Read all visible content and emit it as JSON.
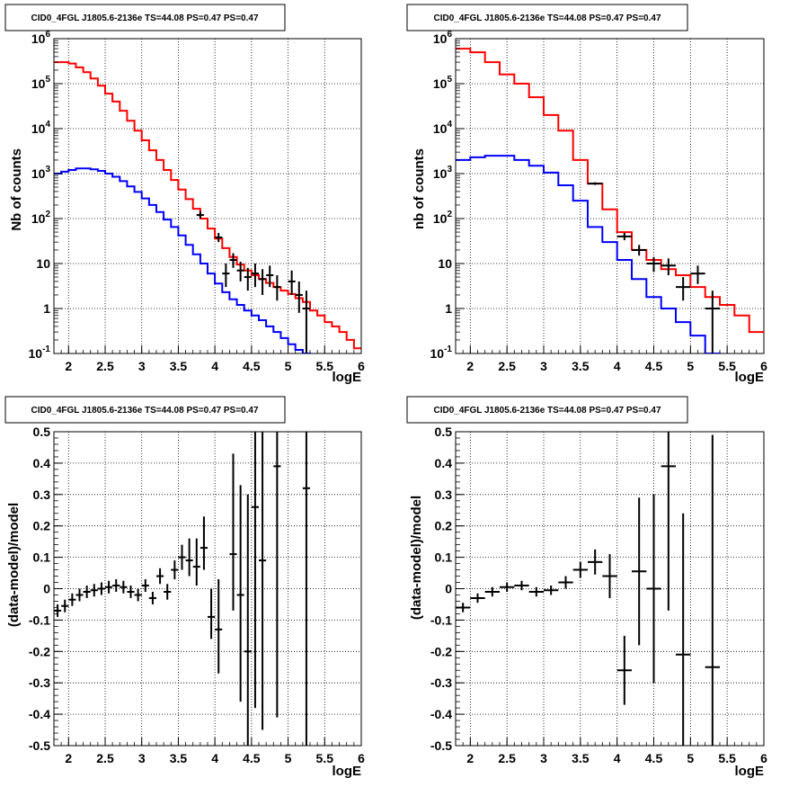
{
  "charts": [
    {
      "id": "counts-left",
      "title": "CID0_4FGL J1805.6-2136e TS=44.08 PS=0.47 PS=0.47",
      "ylabel": "Nb of counts",
      "xlabel": "logE"
    },
    {
      "id": "counts-right",
      "title": "CID0_4FGL J1805.6-2136e TS=44.08 PS=0.47 PS=0.47",
      "ylabel": "nb of counts",
      "xlabel": "logE"
    },
    {
      "id": "resid-left",
      "title": "CID0_4FGL J1805.6-2136e TS=44.08 PS=0.47 PS=0.47",
      "ylabel": "(data-model)/model",
      "xlabel": "logE"
    },
    {
      "id": "resid-right",
      "title": "CID0_4FGL J1805.6-2136e TS=44.08 PS=0.47 PS=0.47",
      "ylabel": "(data-model)/model",
      "xlabel": "logE"
    }
  ],
  "chart_data": [
    {
      "type": "line",
      "title": "CID0_4FGL J1805.6-2136e TS=44.08 PS=0.47 PS=0.47",
      "xlabel": "logE",
      "ylabel": "Nb of counts",
      "xlim": [
        1.8,
        6
      ],
      "ylim": [
        0.1,
        1000000
      ],
      "yscale": "log",
      "grid": true,
      "xticks": [
        2,
        2.5,
        3,
        3.5,
        4,
        4.5,
        5,
        5.5,
        6
      ],
      "series": [
        {
          "color": "#ff0000",
          "style": "step",
          "bins": [
            1.8,
            1.9,
            2.0,
            2.1,
            2.2,
            2.3,
            2.4,
            2.5,
            2.6,
            2.7,
            2.8,
            2.9,
            3.0,
            3.1,
            3.2,
            3.3,
            3.4,
            3.5,
            3.6,
            3.7,
            3.8,
            3.9,
            4.0,
            4.1,
            4.2,
            4.3,
            4.4,
            4.5,
            4.6,
            4.7,
            4.8,
            4.9,
            5.0,
            5.1,
            5.2,
            5.3,
            5.4,
            5.5,
            5.6,
            5.7,
            5.8,
            5.9,
            6.0
          ],
          "values": [
            300000,
            300000,
            280000,
            230000,
            180000,
            130000,
            90000,
            60000,
            40000,
            25000,
            15000,
            9000,
            5500,
            3300,
            2000,
            1200,
            720,
            440,
            270,
            165,
            100,
            60,
            36,
            22,
            14,
            9.5,
            7,
            5.5,
            4.5,
            3.7,
            3,
            2.5,
            2.1,
            1.7,
            1.4,
            0.9,
            0.7,
            0.5,
            0.4,
            0.3,
            0.2,
            0.13
          ]
        },
        {
          "color": "#0000ff",
          "style": "step",
          "bins": [
            1.8,
            1.9,
            2.0,
            2.1,
            2.2,
            2.3,
            2.4,
            2.5,
            2.6,
            2.7,
            2.8,
            2.9,
            3.0,
            3.1,
            3.2,
            3.3,
            3.4,
            3.5,
            3.6,
            3.7,
            3.8,
            3.9,
            4.0,
            4.1,
            4.2,
            4.3,
            4.4,
            4.5,
            4.6,
            4.7,
            4.8,
            4.9,
            5.0,
            5.1,
            5.2,
            5.3,
            5.4,
            5.5,
            5.6,
            5.7,
            5.8,
            5.9,
            6.0
          ],
          "values": [
            1000,
            1100,
            1200,
            1300,
            1300,
            1250,
            1150,
            1000,
            850,
            680,
            520,
            390,
            280,
            200,
            140,
            95,
            65,
            42,
            26,
            16,
            10,
            6,
            3.6,
            2.3,
            1.6,
            1.2,
            0.9,
            0.7,
            0.55,
            0.4,
            0.3,
            0.22,
            0.16,
            0.12,
            0.1,
            0.08,
            0.07,
            0.06,
            0.05,
            0.04,
            0.03,
            0.02
          ]
        }
      ],
      "points": [
        {
          "x": 3.8,
          "y": 120,
          "xerr": 0.05,
          "ylo": 100,
          "yhi": 145
        },
        {
          "x": 4.05,
          "y": 38,
          "xerr": 0.05,
          "ylo": 30,
          "yhi": 48
        },
        {
          "x": 4.15,
          "y": 6,
          "xerr": 0.05,
          "ylo": 3,
          "yhi": 10
        },
        {
          "x": 4.25,
          "y": 12,
          "xerr": 0.05,
          "ylo": 8,
          "yhi": 17
        },
        {
          "x": 4.35,
          "y": 7,
          "xerr": 0.05,
          "ylo": 4,
          "yhi": 11
        },
        {
          "x": 4.45,
          "y": 5,
          "xerr": 0.05,
          "ylo": 2.5,
          "yhi": 8
        },
        {
          "x": 4.55,
          "y": 6,
          "xerr": 0.05,
          "ylo": 3,
          "yhi": 10
        },
        {
          "x": 4.65,
          "y": 4.5,
          "xerr": 0.05,
          "ylo": 2,
          "yhi": 7.5
        },
        {
          "x": 4.75,
          "y": 5.5,
          "xerr": 0.05,
          "ylo": 3,
          "yhi": 9
        },
        {
          "x": 4.85,
          "y": 3,
          "xerr": 0.05,
          "ylo": 1.5,
          "yhi": 5.5
        },
        {
          "x": 5.05,
          "y": 4,
          "xerr": 0.05,
          "ylo": 2,
          "yhi": 7
        },
        {
          "x": 5.15,
          "y": 2,
          "xerr": 0.05,
          "ylo": 0.8,
          "yhi": 4
        },
        {
          "x": 5.25,
          "y": 1,
          "xerr": 0.05,
          "ylo": 0.1,
          "yhi": 2.5
        }
      ]
    },
    {
      "type": "line",
      "title": "CID0_4FGL J1805.6-2136e TS=44.08 PS=0.47 PS=0.47",
      "xlabel": "logE",
      "ylabel": "nb of counts",
      "xlim": [
        1.8,
        6
      ],
      "ylim": [
        0.1,
        1000000
      ],
      "yscale": "log",
      "grid": true,
      "xticks": [
        2,
        2.5,
        3,
        3.5,
        4,
        4.5,
        5,
        5.5,
        6
      ],
      "series": [
        {
          "color": "#ff0000",
          "style": "step",
          "bins": [
            1.8,
            2.0,
            2.2,
            2.4,
            2.6,
            2.8,
            3.0,
            3.2,
            3.4,
            3.6,
            3.8,
            4.0,
            4.2,
            4.4,
            4.6,
            4.8,
            5.0,
            5.2,
            5.4,
            5.6,
            5.8,
            6.0
          ],
          "values": [
            600000,
            500000,
            300000,
            160000,
            100000,
            50000,
            20000,
            9000,
            2000,
            600,
            160,
            50,
            20,
            12,
            7.5,
            5.5,
            3,
            1.8,
            1.2,
            0.7,
            0.3
          ]
        },
        {
          "color": "#0000ff",
          "style": "step",
          "bins": [
            1.8,
            2.0,
            2.2,
            2.4,
            2.6,
            2.8,
            3.0,
            3.2,
            3.4,
            3.6,
            3.8,
            4.0,
            4.2,
            4.4,
            4.6,
            4.8,
            5.0,
            5.2,
            5.4,
            5.6,
            5.8,
            6.0
          ],
          "values": [
            2000,
            2300,
            2500,
            2500,
            2000,
            1500,
            1050,
            550,
            250,
            65,
            30,
            12,
            4.5,
            1.8,
            1,
            0.5,
            0.25,
            0.1,
            0.05,
            0.03,
            0.02
          ]
        }
      ],
      "points": [
        {
          "x": 3.7,
          "y": 600,
          "xerr": 0.1,
          "ylo": 560,
          "yhi": 640
        },
        {
          "x": 4.1,
          "y": 40,
          "xerr": 0.1,
          "ylo": 33,
          "yhi": 48
        },
        {
          "x": 4.3,
          "y": 20,
          "xerr": 0.1,
          "ylo": 15,
          "yhi": 26
        },
        {
          "x": 4.5,
          "y": 10,
          "xerr": 0.1,
          "ylo": 6.5,
          "yhi": 14
        },
        {
          "x": 4.7,
          "y": 9,
          "xerr": 0.1,
          "ylo": 5.5,
          "yhi": 13
        },
        {
          "x": 4.9,
          "y": 3,
          "xerr": 0.1,
          "ylo": 1.5,
          "yhi": 5
        },
        {
          "x": 5.1,
          "y": 6,
          "xerr": 0.1,
          "ylo": 3.5,
          "yhi": 9
        },
        {
          "x": 5.3,
          "y": 1,
          "xerr": 0.1,
          "ylo": 0.1,
          "yhi": 2.5
        }
      ]
    },
    {
      "type": "scatter",
      "title": "CID0_4FGL J1805.6-2136e TS=44.08 PS=0.47 PS=0.47",
      "xlabel": "logE",
      "ylabel": "(data-model)/model",
      "xlim": [
        1.8,
        6
      ],
      "ylim": [
        -0.5,
        0.5
      ],
      "grid": true,
      "xticks": [
        2,
        2.5,
        3,
        3.5,
        4,
        4.5,
        5,
        5.5,
        6
      ],
      "yticks": [
        -0.5,
        -0.4,
        -0.3,
        -0.2,
        -0.1,
        0,
        0.1,
        0.2,
        0.3,
        0.4,
        0.5
      ],
      "points": [
        {
          "x": 1.85,
          "y": -0.07,
          "xerr": 0.05,
          "ylo": -0.09,
          "yhi": -0.05
        },
        {
          "x": 1.95,
          "y": -0.055,
          "xerr": 0.05,
          "ylo": -0.075,
          "yhi": -0.035
        },
        {
          "x": 2.05,
          "y": -0.035,
          "xerr": 0.05,
          "ylo": -0.055,
          "yhi": -0.015
        },
        {
          "x": 2.15,
          "y": -0.02,
          "xerr": 0.05,
          "ylo": -0.04,
          "yhi": 0.0
        },
        {
          "x": 2.25,
          "y": -0.01,
          "xerr": 0.05,
          "ylo": -0.03,
          "yhi": 0.01
        },
        {
          "x": 2.35,
          "y": -0.005,
          "xerr": 0.05,
          "ylo": -0.025,
          "yhi": 0.015
        },
        {
          "x": 2.45,
          "y": 0.0,
          "xerr": 0.05,
          "ylo": -0.02,
          "yhi": 0.02
        },
        {
          "x": 2.55,
          "y": 0.005,
          "xerr": 0.05,
          "ylo": -0.015,
          "yhi": 0.025
        },
        {
          "x": 2.65,
          "y": 0.01,
          "xerr": 0.05,
          "ylo": -0.01,
          "yhi": 0.03
        },
        {
          "x": 2.75,
          "y": 0.005,
          "xerr": 0.05,
          "ylo": -0.015,
          "yhi": 0.025
        },
        {
          "x": 2.85,
          "y": -0.01,
          "xerr": 0.05,
          "ylo": -0.03,
          "yhi": 0.01
        },
        {
          "x": 2.95,
          "y": -0.02,
          "xerr": 0.05,
          "ylo": -0.04,
          "yhi": 0.0
        },
        {
          "x": 3.05,
          "y": 0.01,
          "xerr": 0.05,
          "ylo": -0.01,
          "yhi": 0.03
        },
        {
          "x": 3.15,
          "y": -0.03,
          "xerr": 0.05,
          "ylo": -0.05,
          "yhi": -0.01
        },
        {
          "x": 3.25,
          "y": 0.04,
          "xerr": 0.05,
          "ylo": 0.015,
          "yhi": 0.065
        },
        {
          "x": 3.35,
          "y": -0.01,
          "xerr": 0.05,
          "ylo": -0.035,
          "yhi": 0.015
        },
        {
          "x": 3.45,
          "y": 0.06,
          "xerr": 0.05,
          "ylo": 0.03,
          "yhi": 0.09
        },
        {
          "x": 3.55,
          "y": 0.1,
          "xerr": 0.05,
          "ylo": 0.06,
          "yhi": 0.14
        },
        {
          "x": 3.65,
          "y": 0.09,
          "xerr": 0.05,
          "ylo": 0.04,
          "yhi": 0.16
        },
        {
          "x": 3.75,
          "y": 0.07,
          "xerr": 0.05,
          "ylo": 0.01,
          "yhi": 0.16
        },
        {
          "x": 3.85,
          "y": 0.13,
          "xerr": 0.05,
          "ylo": 0.06,
          "yhi": 0.23
        },
        {
          "x": 3.95,
          "y": -0.09,
          "xerr": 0.05,
          "ylo": -0.16,
          "yhi": 0.0
        },
        {
          "x": 4.05,
          "y": -0.13,
          "xerr": 0.05,
          "ylo": -0.27,
          "yhi": 0.03
        },
        {
          "x": 4.25,
          "y": 0.11,
          "xerr": 0.05,
          "ylo": -0.07,
          "yhi": 0.43
        },
        {
          "x": 4.35,
          "y": -0.02,
          "xerr": 0.05,
          "ylo": -0.36,
          "yhi": 0.33
        },
        {
          "x": 4.45,
          "y": -0.2,
          "xerr": 0.05,
          "ylo": -0.5,
          "yhi": 0.3
        },
        {
          "x": 4.55,
          "y": 0.26,
          "xerr": 0.05,
          "ylo": -0.38,
          "yhi": 0.5
        },
        {
          "x": 4.65,
          "y": 0.09,
          "xerr": 0.05,
          "ylo": -0.45,
          "yhi": 0.5
        },
        {
          "x": 4.85,
          "y": 0.39,
          "xerr": 0.05,
          "ylo": -0.41,
          "yhi": 0.5
        },
        {
          "x": 5.25,
          "y": 0.32,
          "xerr": 0.05,
          "ylo": -0.5,
          "yhi": 0.5
        }
      ]
    },
    {
      "type": "scatter",
      "title": "CID0_4FGL J1805.6-2136e TS=44.08 PS=0.47 PS=0.47",
      "xlabel": "logE",
      "ylabel": "(data-model)/model",
      "xlim": [
        1.8,
        6
      ],
      "ylim": [
        -0.5,
        0.5
      ],
      "grid": true,
      "xticks": [
        2,
        2.5,
        3,
        3.5,
        4,
        4.5,
        5,
        5.5,
        6
      ],
      "yticks": [
        -0.5,
        -0.4,
        -0.3,
        -0.2,
        -0.1,
        0,
        0.1,
        0.2,
        0.3,
        0.4,
        0.5
      ],
      "points": [
        {
          "x": 1.9,
          "y": -0.06,
          "xerr": 0.1,
          "ylo": -0.075,
          "yhi": -0.045
        },
        {
          "x": 2.1,
          "y": -0.03,
          "xerr": 0.1,
          "ylo": -0.045,
          "yhi": -0.015
        },
        {
          "x": 2.3,
          "y": -0.01,
          "xerr": 0.1,
          "ylo": -0.025,
          "yhi": 0.005
        },
        {
          "x": 2.5,
          "y": 0.005,
          "xerr": 0.1,
          "ylo": -0.01,
          "yhi": 0.02
        },
        {
          "x": 2.7,
          "y": 0.01,
          "xerr": 0.1,
          "ylo": -0.005,
          "yhi": 0.025
        },
        {
          "x": 2.9,
          "y": -0.01,
          "xerr": 0.1,
          "ylo": -0.025,
          "yhi": 0.005
        },
        {
          "x": 3.1,
          "y": -0.005,
          "xerr": 0.1,
          "ylo": -0.02,
          "yhi": 0.01
        },
        {
          "x": 3.3,
          "y": 0.02,
          "xerr": 0.1,
          "ylo": 0.0,
          "yhi": 0.04
        },
        {
          "x": 3.5,
          "y": 0.06,
          "xerr": 0.1,
          "ylo": 0.035,
          "yhi": 0.085
        },
        {
          "x": 3.7,
          "y": 0.085,
          "xerr": 0.1,
          "ylo": 0.045,
          "yhi": 0.125
        },
        {
          "x": 3.9,
          "y": 0.04,
          "xerr": 0.1,
          "ylo": -0.03,
          "yhi": 0.11
        },
        {
          "x": 4.1,
          "y": -0.26,
          "xerr": 0.1,
          "ylo": -0.37,
          "yhi": -0.15
        },
        {
          "x": 4.3,
          "y": 0.055,
          "xerr": 0.1,
          "ylo": -0.18,
          "yhi": 0.29
        },
        {
          "x": 4.5,
          "y": 0.0,
          "xerr": 0.1,
          "ylo": -0.3,
          "yhi": 0.3
        },
        {
          "x": 4.7,
          "y": 0.39,
          "xerr": 0.1,
          "ylo": -0.07,
          "yhi": 0.5
        },
        {
          "x": 4.9,
          "y": -0.21,
          "xerr": 0.1,
          "ylo": -0.5,
          "yhi": 0.24
        },
        {
          "x": 5.3,
          "y": -0.25,
          "xerr": 0.1,
          "ylo": -0.5,
          "yhi": 0.49
        }
      ]
    }
  ]
}
